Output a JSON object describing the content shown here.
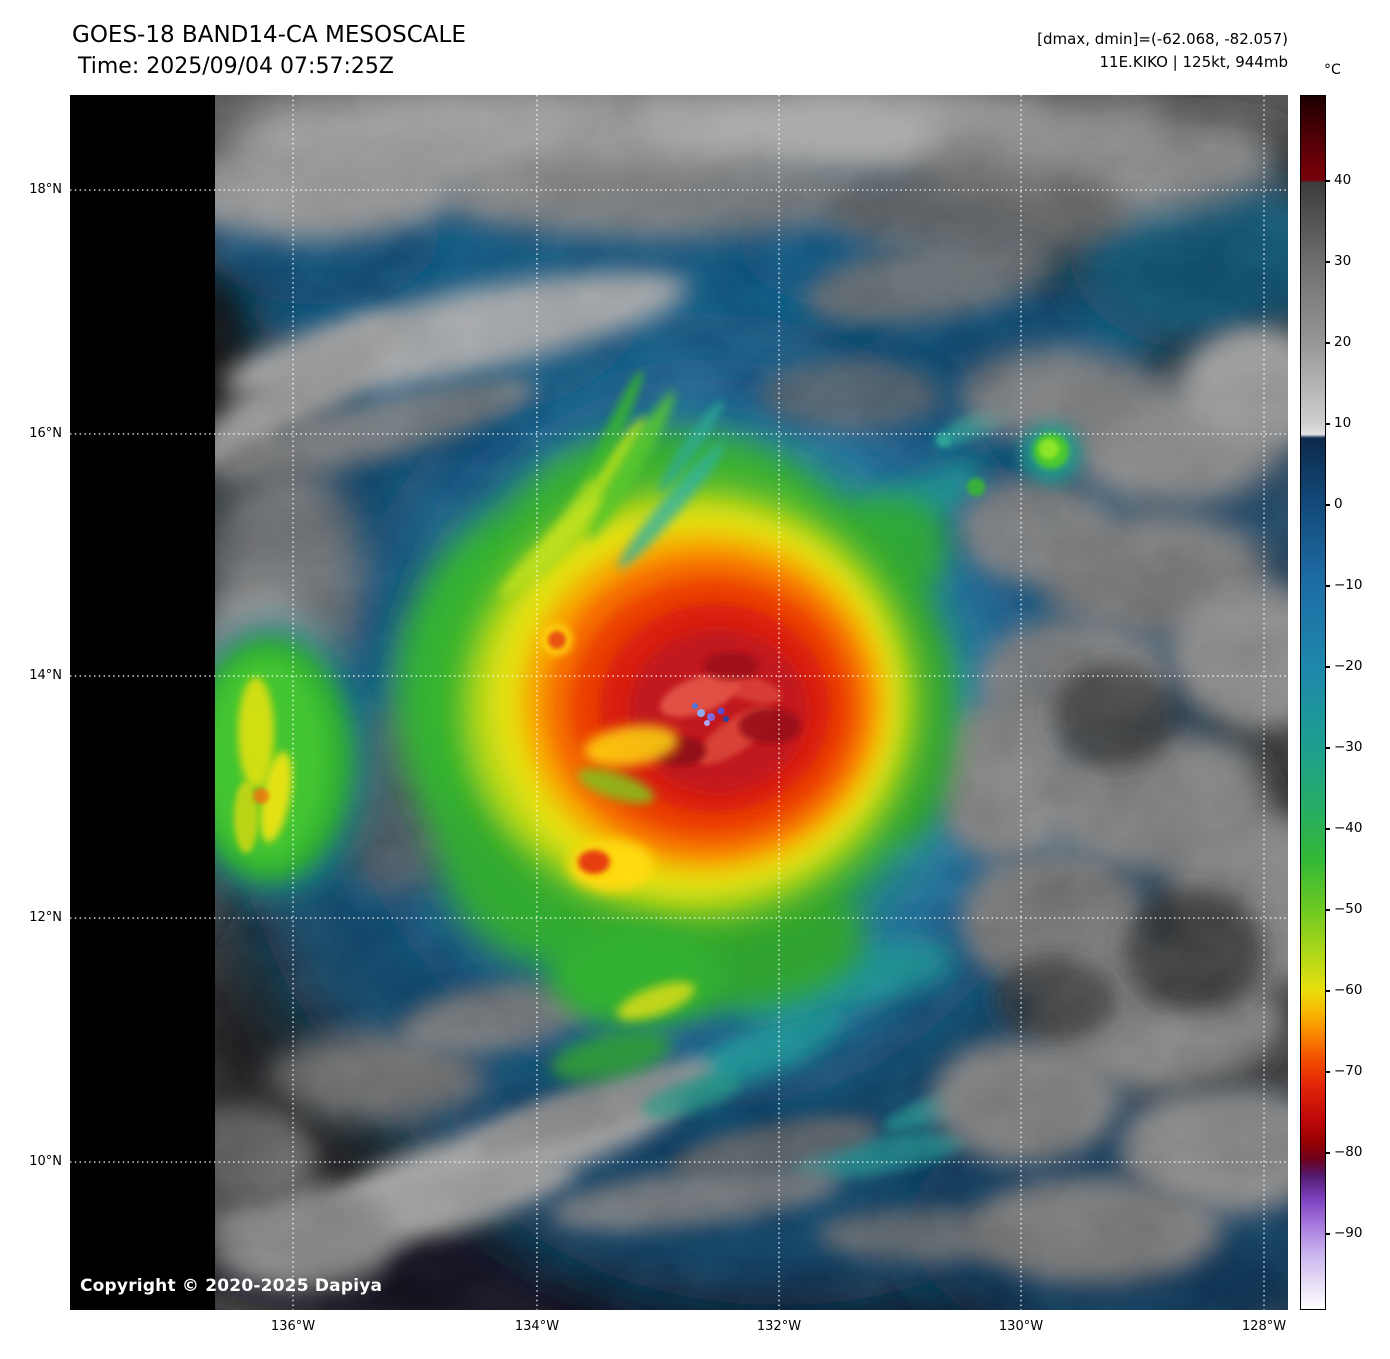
{
  "header": {
    "title": "GOES-18 BAND14-CA MESOSCALE",
    "time_line": "Time: 2025/09/04 07:57:25Z",
    "dmax_dmin": "[dmax, dmin]=(-62.068, -82.057)",
    "storm_info": "11E.KIKO | 125kt, 944mb"
  },
  "map": {
    "copyright": "Copyright © 2020-2025 Dapiya",
    "lat_gridlines": [
      {
        "label": "18°N",
        "pct": 7.82
      },
      {
        "label": "16°N",
        "pct": 27.9
      },
      {
        "label": "14°N",
        "pct": 47.82
      },
      {
        "label": "12°N",
        "pct": 67.74
      },
      {
        "label": "10°N",
        "pct": 87.82
      }
    ],
    "lon_gridlines": [
      {
        "label": "136°W",
        "pct": 18.31
      },
      {
        "label": "134°W",
        "pct": 38.34
      },
      {
        "label": "132°W",
        "pct": 58.21
      },
      {
        "label": "130°W",
        "pct": 78.08
      },
      {
        "label": "128°W",
        "pct": 98.03
      }
    ]
  },
  "colorbar": {
    "unit": "°C",
    "ticks": [
      {
        "label": "40",
        "pct": 7.0
      },
      {
        "label": "30",
        "pct": 13.67
      },
      {
        "label": "20",
        "pct": 20.33
      },
      {
        "label": "10",
        "pct": 27.0
      },
      {
        "label": "0",
        "pct": 33.67
      },
      {
        "label": "−10",
        "pct": 40.33
      },
      {
        "label": "−20",
        "pct": 47.0
      },
      {
        "label": "−30",
        "pct": 53.67
      },
      {
        "label": "−40",
        "pct": 60.33
      },
      {
        "label": "−50",
        "pct": 67.0
      },
      {
        "label": "−60",
        "pct": 73.67
      },
      {
        "label": "−70",
        "pct": 80.33
      },
      {
        "label": "−80",
        "pct": 87.0
      },
      {
        "label": "−90",
        "pct": 93.67
      }
    ],
    "gradient_stops": [
      {
        "pct": 0,
        "color": "#1c0000"
      },
      {
        "pct": 3,
        "color": "#4a0005"
      },
      {
        "pct": 6.3,
        "color": "#740009"
      },
      {
        "pct": 6.9,
        "color": "#740009"
      },
      {
        "pct": 7.15,
        "color": "#3c3c3c"
      },
      {
        "pct": 13.67,
        "color": "#6e6e6e"
      },
      {
        "pct": 20.33,
        "color": "#969696"
      },
      {
        "pct": 27,
        "color": "#cfcfcf"
      },
      {
        "pct": 27.9,
        "color": "#e2e2e2"
      },
      {
        "pct": 28.2,
        "color": "#0c2a4c"
      },
      {
        "pct": 33.67,
        "color": "#134a7a"
      },
      {
        "pct": 40.33,
        "color": "#1d6ea6"
      },
      {
        "pct": 47,
        "color": "#1e87ac"
      },
      {
        "pct": 53.67,
        "color": "#1d9f90"
      },
      {
        "pct": 59,
        "color": "#28ad62"
      },
      {
        "pct": 63,
        "color": "#33b837"
      },
      {
        "pct": 67,
        "color": "#6cc922"
      },
      {
        "pct": 71,
        "color": "#b4d818"
      },
      {
        "pct": 73.67,
        "color": "#e8e00e"
      },
      {
        "pct": 75.67,
        "color": "#f8b400"
      },
      {
        "pct": 77.67,
        "color": "#f97d00"
      },
      {
        "pct": 79.67,
        "color": "#f04800"
      },
      {
        "pct": 81.67,
        "color": "#e02408"
      },
      {
        "pct": 84.33,
        "color": "#c00808"
      },
      {
        "pct": 86.33,
        "color": "#940000"
      },
      {
        "pct": 87.67,
        "color": "#6e001e"
      },
      {
        "pct": 89,
        "color": "#531a70"
      },
      {
        "pct": 91,
        "color": "#7e42c0"
      },
      {
        "pct": 93,
        "color": "#a678dd"
      },
      {
        "pct": 95.67,
        "color": "#cdb9ee"
      },
      {
        "pct": 98.33,
        "color": "#ebe4f7"
      },
      {
        "pct": 100,
        "color": "#ffffff"
      }
    ]
  }
}
